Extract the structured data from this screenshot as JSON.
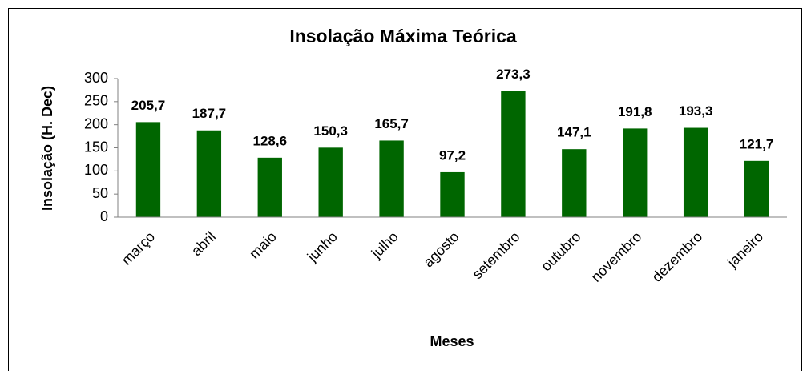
{
  "chart_data": {
    "type": "bar",
    "title": "Insolação Máxima Teórica",
    "x_label": "Meses",
    "y_label": "Insolação (H. Dec)",
    "categories": [
      "março",
      "abril",
      "maio",
      "junho",
      "julho",
      "agosto",
      "setembro",
      "outubro",
      "novembro",
      "dezembro",
      "janeiro"
    ],
    "values": [
      205.7,
      187.7,
      128.6,
      150.3,
      165.7,
      97.2,
      273.3,
      147.1,
      191.8,
      193.3,
      121.7
    ],
    "value_labels": [
      "205,7",
      "187,7",
      "128,6",
      "150,3",
      "165,7",
      "97,2",
      "273,3",
      "147,1",
      "191,8",
      "193,3",
      "121,7"
    ],
    "color": "#006600",
    "ylim": [
      0,
      300
    ],
    "yticks": [
      0,
      50,
      100,
      150,
      200,
      250,
      300
    ],
    "grid": false
  }
}
